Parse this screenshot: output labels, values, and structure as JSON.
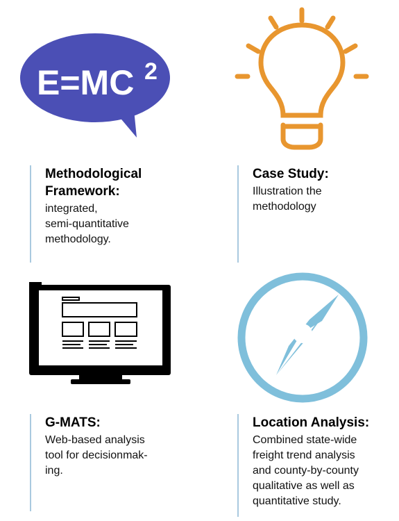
{
  "colors": {
    "emc_purple": "#4b4fb5",
    "bulb_orange": "#e8962f",
    "monitor_black": "#000000",
    "compass_blue": "#7fbfdb",
    "divider": "#a9c9df"
  },
  "icons": {
    "emc": "speech-bubble-formula-icon",
    "bulb": "lightbulb-icon",
    "monitor": "monitor-icon",
    "compass": "compass-icon"
  },
  "emc_text": {
    "base": "E=MC",
    "superscript": "2"
  },
  "items": [
    {
      "title_lines": [
        "Methodological",
        "Framework:"
      ],
      "body_lines": [
        "integrated,",
        "semi-quantitative",
        "methodology."
      ]
    },
    {
      "title_lines": [
        "Case Study:"
      ],
      "body_lines": [
        "Illustration the",
        "methodology"
      ]
    },
    {
      "title_lines": [
        "G-MATS:"
      ],
      "body_lines": [
        "Web-based analysis",
        "tool for decisionmak-",
        "ing."
      ]
    },
    {
      "title_lines": [
        "Location Analysis:"
      ],
      "body_lines": [
        "Combined state-wide",
        "freight trend analysis",
        "and county-by-county",
        "qualitative as well as",
        "quantitative study."
      ]
    }
  ]
}
